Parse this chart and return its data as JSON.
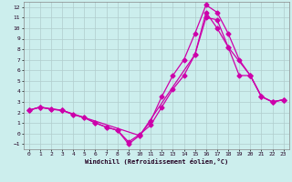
{
  "xlabel": "Windchill (Refroidissement éolien,°C)",
  "xlim": [
    -0.5,
    23.5
  ],
  "ylim": [
    -1.5,
    12.5
  ],
  "xticks": [
    0,
    1,
    2,
    3,
    4,
    5,
    6,
    7,
    8,
    9,
    10,
    11,
    12,
    13,
    14,
    15,
    16,
    17,
    18,
    19,
    20,
    21,
    22,
    23
  ],
  "yticks": [
    -1,
    0,
    1,
    2,
    3,
    4,
    5,
    6,
    7,
    8,
    9,
    10,
    11,
    12
  ],
  "bg_color": "#cceeed",
  "grid_color": "#b0cccc",
  "line_color": "#cc00aa",
  "lines": [
    {
      "x": [
        0,
        1,
        2,
        3,
        4,
        5,
        6,
        7,
        8,
        9,
        10,
        11,
        12,
        13,
        14,
        15,
        16,
        17,
        18,
        19,
        20,
        21,
        22,
        23
      ],
      "y": [
        2.2,
        2.5,
        2.3,
        2.2,
        1.8,
        1.5,
        1.0,
        0.6,
        0.3,
        -0.8,
        -0.1,
        0.8,
        2.5,
        4.2,
        5.5,
        7.5,
        11.0,
        10.8,
        8.2,
        5.5,
        5.5,
        3.5,
        3.0,
        3.2
      ]
    },
    {
      "x": [
        0,
        1,
        2,
        3,
        4,
        5,
        6,
        7,
        8,
        9,
        10,
        11,
        12,
        13,
        14,
        15,
        16,
        17,
        18,
        19,
        20,
        21,
        22,
        23
      ],
      "y": [
        2.2,
        2.5,
        2.3,
        2.2,
        1.8,
        1.5,
        1.0,
        0.6,
        0.3,
        -1.0,
        -0.2,
        1.2,
        3.5,
        5.5,
        7.0,
        9.5,
        12.2,
        11.5,
        9.5,
        7.0,
        5.5,
        3.5,
        3.0,
        3.2
      ]
    },
    {
      "x": [
        0,
        1,
        3,
        10,
        15,
        16,
        17,
        18,
        20,
        21,
        22,
        23
      ],
      "y": [
        2.2,
        2.5,
        2.2,
        -0.2,
        7.5,
        11.5,
        10.0,
        8.2,
        5.5,
        3.5,
        3.0,
        3.2
      ]
    }
  ],
  "line_styles": [
    "solid",
    "solid",
    "solid"
  ],
  "markers": [
    "D",
    "D",
    "D"
  ],
  "markersize": 2.5,
  "linewidth": 0.9,
  "tick_fontsize": 4.5,
  "xlabel_fontsize": 5.0
}
